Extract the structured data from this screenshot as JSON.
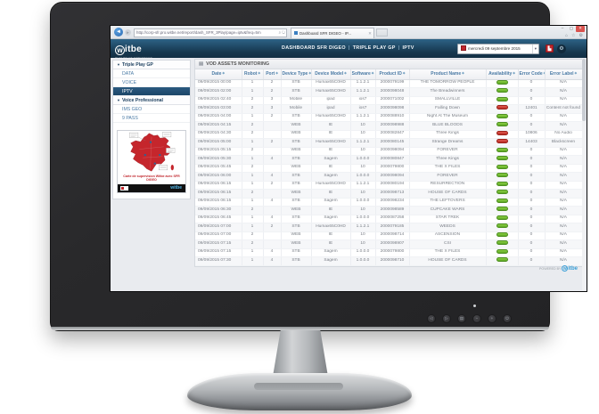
{
  "colors": {
    "ok_green": "#5ca823",
    "ko_red": "#b92b22",
    "header_blue": "#1c4668",
    "link_blue": "#4a7aa5",
    "brand_red": "#c0262c"
  },
  "browser": {
    "url": "http://corp-sfr.pro.witbe.net/report/dash_SFR_3Play/page=iptv&freq=5m",
    "url_icons": "⌕ ↻",
    "tab_title": "Dashboard SFR DIGEO - IP...",
    "minimize": "–",
    "maximize": "▢",
    "close": "✕",
    "home_icon": "⌂",
    "star_icon": "☆",
    "gear_icon": "⚙",
    "back_icon": "◄",
    "forward_icon": "►",
    "tab_close_icon": "✕"
  },
  "header": {
    "logo_first": "w",
    "logo_rest": "itbe",
    "tagline": "QUALITY OF EXPERIENCE",
    "nav": [
      "DASHBOARD SFR DIGEO",
      "TRIPLE PLAY GP",
      "IPTV"
    ],
    "date_label": "mercredi 09 septembre 2015",
    "date_caret": "▾",
    "export_icon": "▙",
    "settings_icon": "⚙"
  },
  "sidebar": {
    "sections": [
      {
        "title": "Triple Play GP",
        "items": [
          {
            "label": "DATA",
            "selected": false
          },
          {
            "label": "VOICE",
            "selected": false
          },
          {
            "label": "IPTV",
            "selected": true
          }
        ]
      },
      {
        "title": "Voice Professional",
        "items": [
          {
            "label": "IMS GEO",
            "selected": false
          },
          {
            "label": "9 PASS",
            "selected": false
          }
        ]
      }
    ],
    "map_card": {
      "caption": "Carte de supervision Witbe avec SFR DIGEO",
      "strip_logo": "witbe"
    }
  },
  "table": {
    "title": "VOD ASSETS MONITORING",
    "title_icon": "▤",
    "sort_icon": "◆",
    "columns": [
      "Date",
      "Robot",
      "Port",
      "Device Type",
      "Device Model",
      "Software",
      "Product ID",
      "Product Name",
      "Availability",
      "Error Code",
      "Error Label"
    ],
    "rows": [
      {
        "date": "09/09/2015 00:00",
        "robot": "1",
        "port": "2",
        "device_type": "STB",
        "device_model": "Humax65C0HD",
        "software": "1.1.2.1",
        "product_id": "2000079199",
        "product_name": "THE TOMORROW PEOPLE",
        "availability": "ok",
        "error_code": "0",
        "error_label": "N/A"
      },
      {
        "date": "09/09/2015 02:00",
        "robot": "1",
        "port": "2",
        "device_type": "STB",
        "device_model": "Humax65C0HD",
        "software": "1.1.2.1",
        "product_id": "2000098048",
        "product_name": "The Breadwinners",
        "availability": "ok",
        "error_code": "0",
        "error_label": "N/A"
      },
      {
        "date": "09/09/2015 02:40",
        "robot": "2",
        "port": "3",
        "device_type": "Mobile",
        "device_model": "ipad",
        "software": "ios7",
        "product_id": "2000071002",
        "product_name": "SMALLVILLE",
        "availability": "ok",
        "error_code": "0",
        "error_label": "N/A"
      },
      {
        "date": "09/09/2015 03:00",
        "robot": "2",
        "port": "3",
        "device_type": "Mobile",
        "device_model": "ipad",
        "software": "ios7",
        "product_id": "2000098098",
        "product_name": "Falling Down",
        "availability": "ko",
        "error_code": "12401",
        "error_label": "Content not found"
      },
      {
        "date": "09/09/2015 04:00",
        "robot": "1",
        "port": "2",
        "device_type": "STB",
        "device_model": "Humax65C0HD",
        "software": "1.1.2.1",
        "product_id": "2000088910",
        "product_name": "Night At The Museum",
        "availability": "ok",
        "error_code": "0",
        "error_label": "N/A"
      },
      {
        "date": "09/09/2015 04:15",
        "robot": "2",
        "port": "",
        "device_type": "WEB",
        "device_model": "IE",
        "software": "10",
        "product_id": "2000098988",
        "product_name": "BLUE BLOODS",
        "availability": "ok",
        "error_code": "0",
        "error_label": "N/A"
      },
      {
        "date": "09/09/2015 04:30",
        "robot": "2",
        "port": "",
        "device_type": "WEB",
        "device_model": "IE",
        "software": "10",
        "product_id": "2000082847",
        "product_name": "Three Kings",
        "availability": "ko",
        "error_code": "10806",
        "error_label": "No Audio"
      },
      {
        "date": "09/09/2015 05:00",
        "robot": "1",
        "port": "2",
        "device_type": "STB",
        "device_model": "Humax65C0HD",
        "software": "1.1.2.1",
        "product_id": "2000080145",
        "product_name": "Strange Dreams",
        "availability": "ko",
        "error_code": "14403",
        "error_label": "Blackscreen"
      },
      {
        "date": "09/09/2015 05:15",
        "robot": "2",
        "port": "",
        "device_type": "WEB",
        "device_model": "IE",
        "software": "10",
        "product_id": "2000098094",
        "product_name": "FOREVER",
        "availability": "ok",
        "error_code": "0",
        "error_label": "N/A"
      },
      {
        "date": "09/09/2015 05:30",
        "robot": "1",
        "port": "4",
        "device_type": "STB",
        "device_model": "Sagem",
        "software": "1.0.0.0",
        "product_id": "2000080847",
        "product_name": "Three Kings",
        "availability": "ok",
        "error_code": "0",
        "error_label": "N/A"
      },
      {
        "date": "09/09/2015 05:45",
        "robot": "2",
        "port": "",
        "device_type": "WEB",
        "device_model": "IE",
        "software": "10",
        "product_id": "2000079800",
        "product_name": "THE X FILES",
        "availability": "ok",
        "error_code": "0",
        "error_label": "N/A"
      },
      {
        "date": "09/09/2015 06:00",
        "robot": "1",
        "port": "4",
        "device_type": "STB",
        "device_model": "Sagem",
        "software": "1.0.0.0",
        "product_id": "2000098094",
        "product_name": "FOREVER",
        "availability": "ok",
        "error_code": "0",
        "error_label": "N/A"
      },
      {
        "date": "09/09/2015 06:15",
        "robot": "1",
        "port": "2",
        "device_type": "STB",
        "device_model": "Humax65C0HD",
        "software": "1.1.2.1",
        "product_id": "2000080194",
        "product_name": "RESURRECTION",
        "availability": "ok",
        "error_code": "0",
        "error_label": "N/A"
      },
      {
        "date": "09/09/2015 06:15",
        "robot": "2",
        "port": "",
        "device_type": "WEB",
        "device_model": "IE",
        "software": "10",
        "product_id": "2000098713",
        "product_name": "HOUSE OF CARDS",
        "availability": "ok",
        "error_code": "0",
        "error_label": "N/A"
      },
      {
        "date": "09/09/2015 06:15",
        "robot": "1",
        "port": "4",
        "device_type": "STB",
        "device_model": "Sagem",
        "software": "1.0.0.0",
        "product_id": "2000098234",
        "product_name": "THE LEFTOVERS",
        "availability": "ok",
        "error_code": "0",
        "error_label": "N/A"
      },
      {
        "date": "09/09/2015 06:30",
        "robot": "2",
        "port": "",
        "device_type": "WEB",
        "device_model": "IE",
        "software": "10",
        "product_id": "2000098589",
        "product_name": "CUPCAKE WARS",
        "availability": "ok",
        "error_code": "0",
        "error_label": "N/A"
      },
      {
        "date": "09/09/2015 06:45",
        "robot": "1",
        "port": "4",
        "device_type": "STB",
        "device_model": "Sagem",
        "software": "1.0.0.0",
        "product_id": "2000087258",
        "product_name": "STAR TREK",
        "availability": "ok",
        "error_code": "0",
        "error_label": "N/A"
      },
      {
        "date": "09/09/2015 07:00",
        "robot": "1",
        "port": "2",
        "device_type": "STB",
        "device_model": "Humax65C0HD",
        "software": "1.1.2.1",
        "product_id": "2000079185",
        "product_name": "WEEDS",
        "availability": "ok",
        "error_code": "0",
        "error_label": "N/A"
      },
      {
        "date": "09/09/2015 07:00",
        "robot": "2",
        "port": "",
        "device_type": "WEB",
        "device_model": "IE",
        "software": "10",
        "product_id": "2000098714",
        "product_name": "ASCENSION",
        "availability": "ok",
        "error_code": "0",
        "error_label": "N/A"
      },
      {
        "date": "09/09/2015 07:15",
        "robot": "2",
        "port": "",
        "device_type": "WEB",
        "device_model": "IE",
        "software": "10",
        "product_id": "2000098907",
        "product_name": "CSI",
        "availability": "ok",
        "error_code": "0",
        "error_label": "N/A"
      },
      {
        "date": "09/09/2015 07:15",
        "robot": "1",
        "port": "4",
        "device_type": "STB",
        "device_model": "Sagem",
        "software": "1.0.0.0",
        "product_id": "2000079800",
        "product_name": "THE X FILES",
        "availability": "ok",
        "error_code": "0",
        "error_label": "N/A"
      },
      {
        "date": "09/09/2015 07:30",
        "robot": "1",
        "port": "4",
        "device_type": "STB",
        "device_model": "Sagem",
        "software": "1.0.0.0",
        "product_id": "2000098710",
        "product_name": "HOUSE OF CARDS",
        "availability": "ok",
        "error_code": "0",
        "error_label": "N/A"
      }
    ]
  },
  "footer": {
    "powered_by": "POWERED BY",
    "powered_logo_first": "w",
    "powered_logo_rest": "itbe"
  },
  "monitor": {
    "buttons": [
      "◁",
      "▷",
      "▤",
      "−",
      "+",
      "⏻"
    ]
  }
}
